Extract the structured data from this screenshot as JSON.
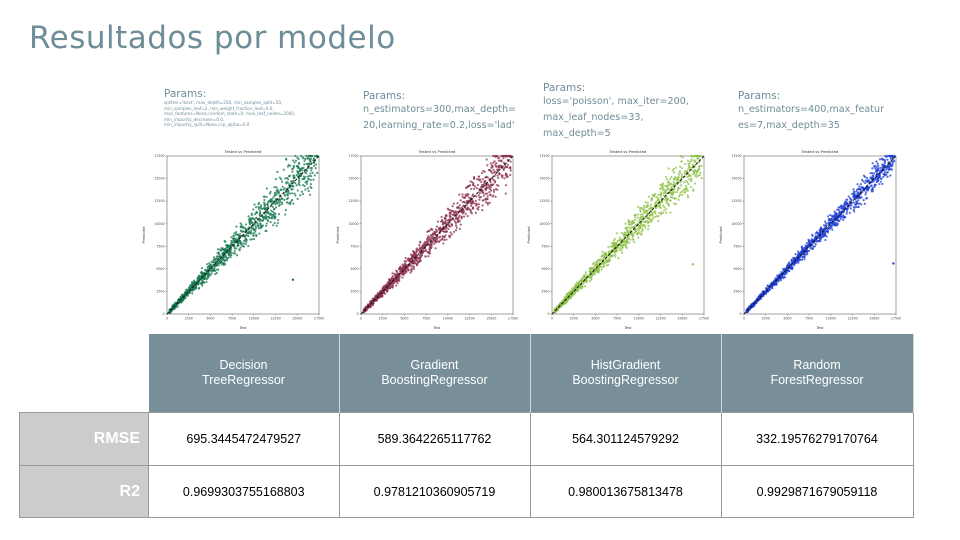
{
  "slide": {
    "title": "Resultados por modelo"
  },
  "params": [
    {
      "label": "Params:",
      "text": "splitter='best', max_depth=250, min_samples_split=50,\nmin_samples_leaf=2, min_weight_fraction_leaf=0.0,\nmax_features=None,random_state=0, max_leaf_nodes=2000,\nmin_impurity_decrease=0.0,\nmin_impurity_split=None,ccp_alpha=0.0"
    },
    {
      "label": "Params:",
      "text": "n_estimators=300,max_depth=\n20,learning_rate=0.2,loss='lad'"
    },
    {
      "label": "Params:",
      "text": "loss='poisson', max_iter=200,\nmax_leaf_nodes=33,\nmax_depth=5"
    },
    {
      "label": "Params:",
      "text": "n_estimators=400,max_featur\nes=7,max_depth=35"
    }
  ],
  "plots": {
    "title": "Tested vs Predicted",
    "xlabel": "Test",
    "ylabel": "Predicted",
    "x_ticks": [
      "0",
      "2500",
      "5000",
      "7500",
      "10000",
      "12500",
      "15000",
      "17500"
    ],
    "y_ticks": [
      "0",
      "2500",
      "5000",
      "7500",
      "10000",
      "12500",
      "15000",
      "17500"
    ],
    "colors": [
      "#1a7a52",
      "#8c3350",
      "#8fc04a",
      "#1f3fd6"
    ]
  },
  "chart_data": [
    {
      "type": "scatter",
      "title": "Tested vs Predicted",
      "xlabel": "Test",
      "ylabel": "Predicted",
      "xlim": [
        0,
        17500
      ],
      "ylim": [
        0,
        17500
      ],
      "color": "#1a7a52",
      "spread": 0.09,
      "outliers": [
        [
          14500,
          3800
        ]
      ]
    },
    {
      "type": "scatter",
      "title": "Tested vs Predicted",
      "xlabel": "Test",
      "ylabel": "Predicted",
      "xlim": [
        0,
        17500
      ],
      "ylim": [
        0,
        17500
      ],
      "color": "#8c3350",
      "spread": 0.08,
      "outliers": []
    },
    {
      "type": "scatter",
      "title": "Tested vs Predicted",
      "xlabel": "Test",
      "ylabel": "Predicted",
      "xlim": [
        0,
        17500
      ],
      "ylim": [
        0,
        17500
      ],
      "color": "#8fc04a",
      "spread": 0.075,
      "outliers": [
        [
          16200,
          5500
        ]
      ]
    },
    {
      "type": "scatter",
      "title": "Tested vs Predicted",
      "xlabel": "Test",
      "ylabel": "Predicted",
      "xlim": [
        0,
        17500
      ],
      "ylim": [
        0,
        17500
      ],
      "color": "#1f3fd6",
      "spread": 0.045,
      "outliers": [
        [
          17200,
          5600
        ]
      ]
    }
  ],
  "table": {
    "headers": [
      "Decision\nTreeRegressor",
      "Gradient\nBoostingRegressor",
      "HistGradient\nBoostingRegressor",
      "Random\nForestRegressor"
    ],
    "rows": [
      {
        "label": "RMSE",
        "values": [
          "695.3445472479527",
          "589.3642265117762",
          "564.301124579292",
          "332.19576279170764"
        ]
      },
      {
        "label": "R2",
        "values": [
          "0.9699303755168803",
          "0.9781210360905719",
          "0.980013675813478",
          "0.9929871679059118"
        ]
      }
    ]
  }
}
